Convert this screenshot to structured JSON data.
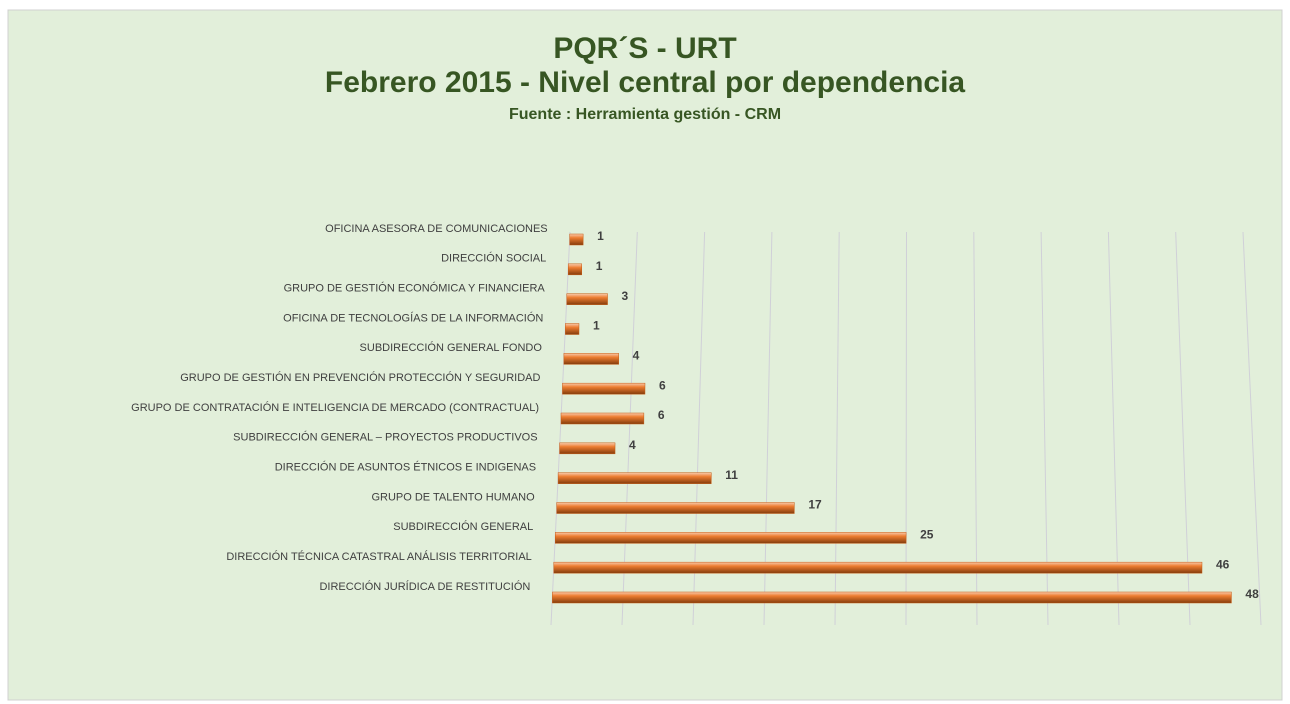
{
  "chart_data": {
    "type": "bar",
    "orientation": "horizontal",
    "title": "PQR´S - URT",
    "subtitle": "Febrero 2015 - Nivel central por dependencia",
    "source": "Fuente : Herramienta gestión - CRM",
    "categories": [
      "OFICINA ASESORA DE COMUNICACIONES",
      "DIRECCIÓN SOCIAL",
      "GRUPO DE GESTIÓN ECONÓMICA Y FINANCIERA",
      "OFICINA DE TECNOLOGÍAS DE LA INFORMACIÓN",
      "SUBDIRECCIÓN GENERAL FONDO",
      "GRUPO DE GESTIÓN EN PREVENCIÓN PROTECCIÓN Y SEGURIDAD",
      "GRUPO DE CONTRATACIÓN E INTELIGENCIA DE MERCADO (CONTRACTUAL)",
      "SUBDIRECCIÓN GENERAL – PROYECTOS PRODUCTIVOS",
      "DIRECCIÓN DE ASUNTOS ÉTNICOS E INDIGENAS",
      "GRUPO DE TALENTO HUMANO",
      "SUBDIRECCIÓN GENERAL",
      "DIRECCIÓN TÉCNICA CATASTRAL ANÁLISIS TERRITORIAL",
      "DIRECCIÓN JURÍDICA DE RESTITUCIÓN"
    ],
    "values": [
      1,
      1,
      3,
      1,
      4,
      6,
      6,
      4,
      11,
      17,
      25,
      46,
      48
    ],
    "color": "#c55a11",
    "xlim": [
      0,
      50
    ],
    "xticks": [
      0,
      5,
      10,
      15,
      20,
      25,
      30,
      35,
      40,
      45,
      50
    ],
    "grid": true
  }
}
